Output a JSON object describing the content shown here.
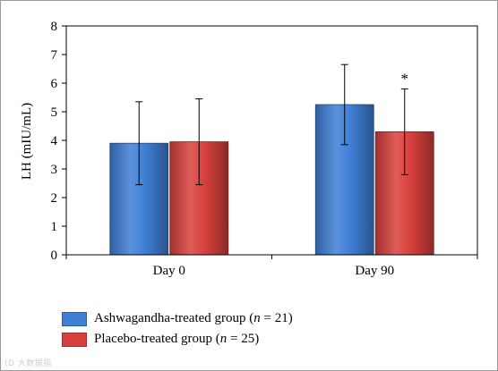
{
  "chart_data": {
    "type": "bar",
    "categories": [
      "Day 0",
      "Day 90"
    ],
    "series": [
      {
        "name": "Ashwagandha-treated group",
        "n": "21",
        "color": "#3f7fd6",
        "values": [
          3.9,
          5.25
        ],
        "error": [
          1.45,
          1.4
        ]
      },
      {
        "name": "Placebo-treated group",
        "n": "25",
        "color": "#d8403c",
        "values": [
          3.95,
          4.3
        ],
        "error": [
          1.5,
          1.5
        ]
      }
    ],
    "ylabel": "LH (mIU/mL)",
    "xlabel": "",
    "ylim": [
      0,
      8
    ],
    "yticks": [
      "0",
      "1",
      "2",
      "3",
      "4",
      "5",
      "6",
      "7",
      "8"
    ],
    "grid": false,
    "legend_position": "bottom-left",
    "annotations": [
      {
        "text": "*",
        "category": "Day 90",
        "series": "Placebo-treated group"
      }
    ]
  },
  "watermark": "(D 大数据指"
}
